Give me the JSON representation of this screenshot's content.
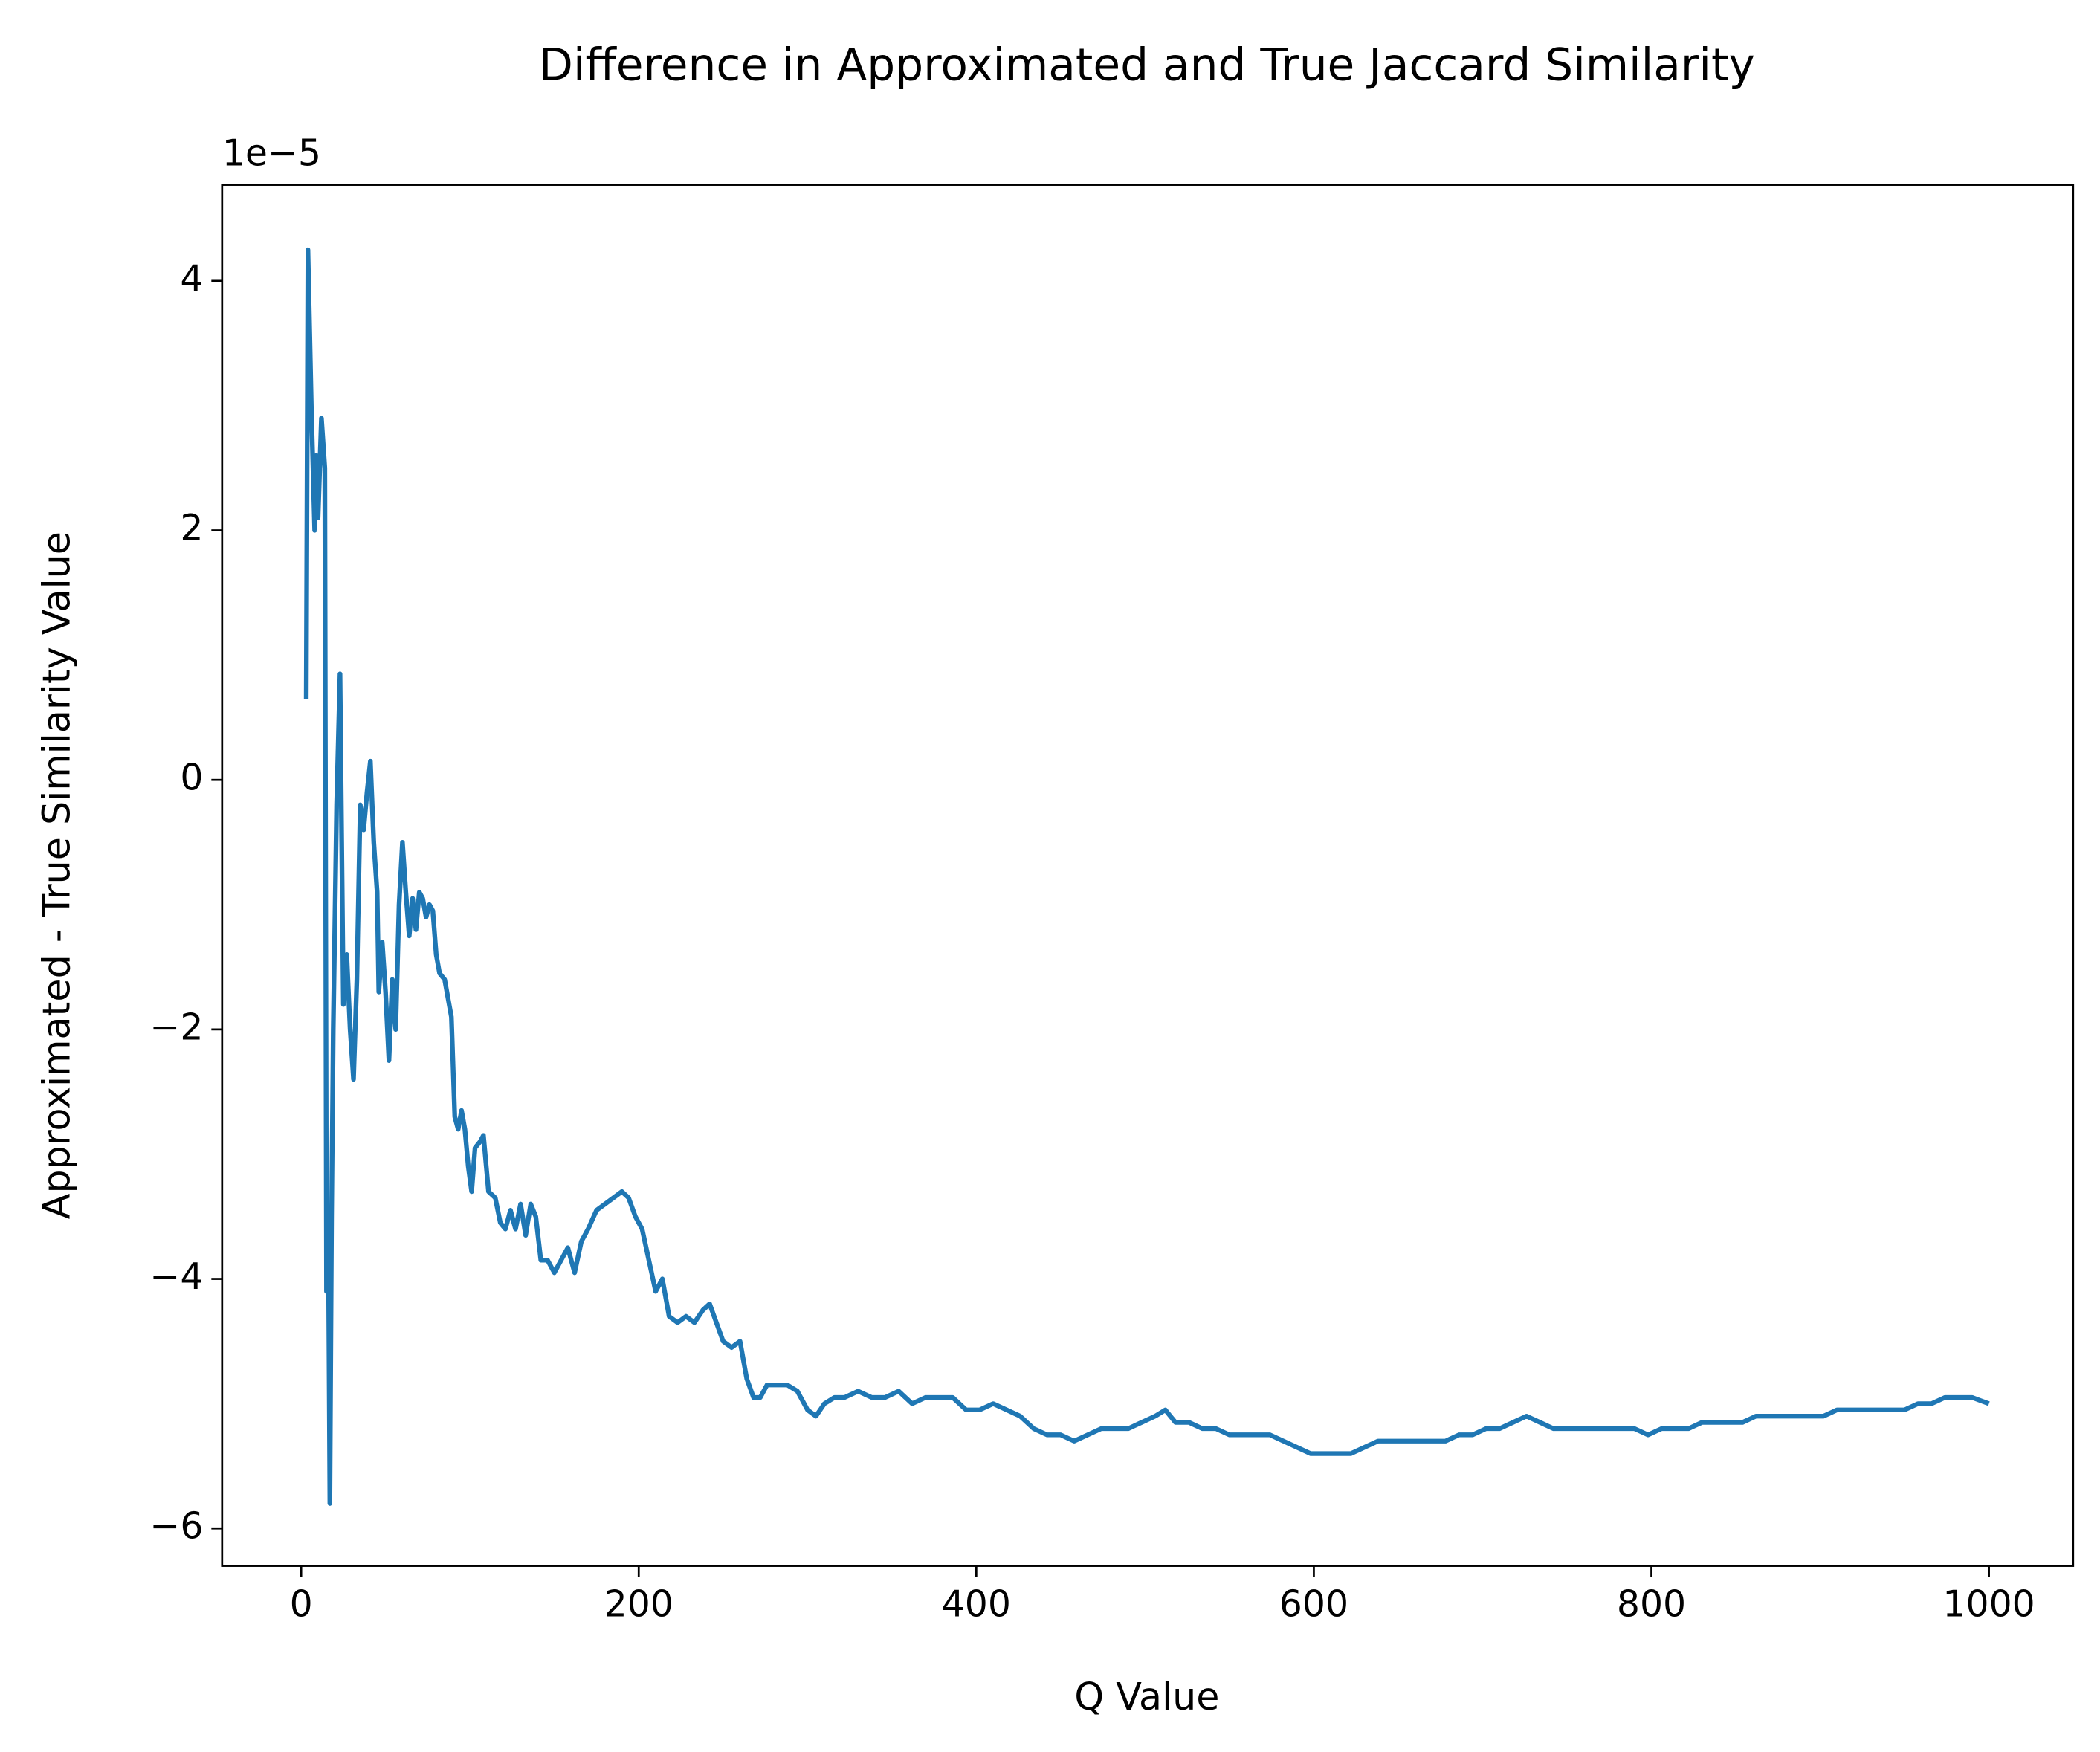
{
  "chart_data": {
    "type": "line",
    "title": "Difference in Approximated and True Jaccard Similarity",
    "xlabel": "Q Value",
    "ylabel": "Approximated - True Similarity Value",
    "y_offset_label": "1e−5",
    "x": [
      3,
      4,
      6,
      8,
      9,
      10,
      12,
      13,
      14,
      15,
      16,
      17,
      18,
      19,
      21,
      23,
      24,
      25,
      27,
      29,
      31,
      33,
      35,
      37,
      39,
      41,
      43,
      45,
      46,
      48,
      50,
      52,
      54,
      56,
      58,
      60,
      62,
      64,
      66,
      68,
      70,
      72,
      74,
      76,
      78,
      80,
      82,
      85,
      87,
      89,
      91,
      93,
      95,
      97,
      99,
      101,
      103,
      106,
      108,
      111,
      115,
      118,
      121,
      124,
      127,
      130,
      133,
      136,
      139,
      142,
      146,
      150,
      154,
      158,
      162,
      166,
      170,
      175,
      180,
      185,
      190,
      194,
      198,
      202,
      206,
      210,
      214,
      218,
      223,
      228,
      233,
      238,
      242,
      246,
      250,
      255,
      260,
      264,
      268,
      272,
      276,
      282,
      288,
      294,
      300,
      305,
      310,
      316,
      322,
      330,
      338,
      346,
      354,
      362,
      370,
      378,
      386,
      394,
      402,
      410,
      418,
      426,
      434,
      442,
      450,
      458,
      466,
      474,
      482,
      490,
      498,
      506,
      512,
      518,
      526,
      534,
      542,
      550,
      558,
      566,
      574,
      582,
      590,
      598,
      606,
      614,
      622,
      630,
      638,
      646,
      654,
      662,
      670,
      678,
      686,
      694,
      702,
      710,
      718,
      726,
      734,
      742,
      750,
      758,
      766,
      774,
      782,
      790,
      798,
      806,
      814,
      822,
      830,
      838,
      846,
      854,
      862,
      870,
      878,
      886,
      894,
      902,
      910,
      918,
      926,
      934,
      942,
      950,
      958,
      966,
      974,
      982,
      990,
      1000
    ],
    "series": [
      {
        "name": "difference",
        "color": "#1f77b4",
        "values": [
          0.65,
          4.25,
          3.0,
          2.0,
          2.6,
          2.1,
          2.9,
          2.7,
          2.5,
          -4.1,
          -3.5,
          -5.8,
          -3.5,
          -2.0,
          -0.2,
          0.85,
          -0.5,
          -1.8,
          -1.4,
          -2.0,
          -2.4,
          -1.6,
          -0.2,
          -0.4,
          -0.1,
          0.15,
          -0.5,
          -0.9,
          -1.7,
          -1.3,
          -1.7,
          -2.25,
          -1.6,
          -2.0,
          -1.0,
          -0.5,
          -0.9,
          -1.25,
          -0.95,
          -1.2,
          -0.9,
          -0.95,
          -1.1,
          -1.0,
          -1.05,
          -1.4,
          -1.55,
          -1.6,
          -1.75,
          -1.9,
          -2.7,
          -2.8,
          -2.65,
          -2.8,
          -3.1,
          -3.3,
          -2.95,
          -2.9,
          -2.85,
          -3.3,
          -3.35,
          -3.55,
          -3.6,
          -3.45,
          -3.6,
          -3.4,
          -3.65,
          -3.4,
          -3.5,
          -3.85,
          -3.85,
          -3.95,
          -3.85,
          -3.75,
          -3.95,
          -3.7,
          -3.6,
          -3.45,
          -3.4,
          -3.35,
          -3.3,
          -3.35,
          -3.5,
          -3.6,
          -3.85,
          -4.1,
          -4.0,
          -4.3,
          -4.35,
          -4.3,
          -4.35,
          -4.25,
          -4.2,
          -4.35,
          -4.5,
          -4.55,
          -4.5,
          -4.8,
          -4.95,
          -4.95,
          -4.85,
          -4.85,
          -4.85,
          -4.9,
          -5.05,
          -5.1,
          -5.0,
          -4.95,
          -4.95,
          -4.9,
          -4.95,
          -4.95,
          -4.9,
          -5.0,
          -4.95,
          -4.95,
          -4.95,
          -5.05,
          -5.05,
          -5.0,
          -5.05,
          -5.1,
          -5.2,
          -5.25,
          -5.25,
          -5.3,
          -5.25,
          -5.2,
          -5.2,
          -5.2,
          -5.15,
          -5.1,
          -5.05,
          -5.15,
          -5.15,
          -5.2,
          -5.2,
          -5.25,
          -5.25,
          -5.25,
          -5.25,
          -5.3,
          -5.35,
          -5.4,
          -5.4,
          -5.4,
          -5.4,
          -5.35,
          -5.3,
          -5.3,
          -5.3,
          -5.3,
          -5.3,
          -5.3,
          -5.25,
          -5.25,
          -5.2,
          -5.2,
          -5.15,
          -5.1,
          -5.15,
          -5.2,
          -5.2,
          -5.2,
          -5.2,
          -5.2,
          -5.2,
          -5.2,
          -5.25,
          -5.2,
          -5.2,
          -5.2,
          -5.15,
          -5.15,
          -5.15,
          -5.15,
          -5.1,
          -5.1,
          -5.1,
          -5.1,
          -5.1,
          -5.1,
          -5.05,
          -5.05,
          -5.05,
          -5.05,
          -5.05,
          -5.05,
          -5.0,
          -5.0,
          -4.95,
          -4.95,
          -4.95,
          -5.0
        ]
      }
    ],
    "xlim": [
      -46.85,
      1049.85
    ],
    "ylim": [
      -6.3,
      4.77
    ],
    "xticks": [
      0,
      200,
      400,
      600,
      800,
      1000
    ],
    "yticks": [
      {
        "value": -6,
        "label": "−6"
      },
      {
        "value": -4,
        "label": "−4"
      },
      {
        "value": -2,
        "label": "−2"
      },
      0,
      2,
      4
    ],
    "grid": false
  }
}
